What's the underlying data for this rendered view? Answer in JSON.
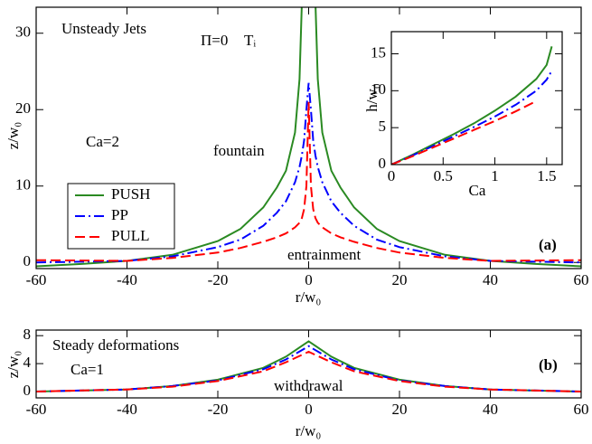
{
  "chart_data": [
    {
      "type": "line",
      "title": "Unsteady Jets",
      "xlabel": "r/w₀",
      "ylabel": "z/w₀",
      "x": [
        -60,
        -50,
        -40,
        -30,
        -20,
        -15,
        -10,
        -7,
        -5,
        -3,
        -2,
        -1.5,
        -1,
        -0.5,
        0,
        0.5,
        1,
        1.5,
        2,
        3,
        5,
        7,
        10,
        15,
        20,
        30,
        40,
        50,
        60
      ],
      "series": [
        {
          "name": "PUSH",
          "color": "#2a8a22",
          "dash": "solid",
          "values": [
            -0.5,
            -0.2,
            0.2,
            1.0,
            2.8,
            4.4,
            7.2,
            9.8,
            12,
            17,
            24,
            34,
            null,
            null,
            null,
            null,
            null,
            34,
            24,
            17,
            12,
            9.8,
            7.2,
            4.4,
            2.8,
            1.0,
            0.2,
            -0.2,
            -0.5
          ]
        },
        {
          "name": "PP",
          "color": "#0000ff",
          "dash": "dashdot",
          "values": [
            0,
            0.1,
            0.2,
            0.8,
            2,
            3,
            4.8,
            6.5,
            8,
            10.5,
            12.5,
            14,
            16,
            20,
            23.5,
            20,
            16,
            14,
            12.5,
            10.5,
            8,
            6.5,
            4.8,
            3,
            2,
            0.8,
            0.2,
            0.1,
            0
          ]
        },
        {
          "name": "PULL",
          "color": "#ff0000",
          "dash": "dashed",
          "values": [
            0.3,
            0.25,
            0.2,
            0.6,
            1.3,
            1.9,
            2.7,
            3.3,
            3.8,
            4.6,
            5.2,
            5.8,
            7,
            10,
            21,
            10,
            7,
            5.8,
            5.2,
            4.6,
            3.8,
            3.3,
            2.7,
            1.9,
            1.3,
            0.6,
            0.2,
            0.25,
            0.3
          ]
        }
      ],
      "xlim": [
        -60,
        60
      ],
      "ylim": [
        -0.8,
        33.4
      ],
      "xticks": [
        -60,
        -40,
        -20,
        0,
        20,
        40,
        60
      ],
      "yticks": [
        0,
        10,
        20,
        30
      ],
      "legend": "left",
      "annotations": [
        {
          "text": "Π=0",
          "color": "#000000"
        },
        {
          "text": "Tᵢ",
          "color": "#000000"
        },
        {
          "text": "Ca=2",
          "color": "#000000"
        },
        {
          "text": "fountain",
          "color": "#2a8a22"
        },
        {
          "text": "entrainment",
          "color": "#ff0000"
        },
        {
          "text": "(a)",
          "color": "#000000",
          "weight": "bold"
        }
      ]
    },
    {
      "type": "line",
      "xlabel": "Ca",
      "ylabel": "h/w₀",
      "x": [
        0,
        0.2,
        0.4,
        0.6,
        0.8,
        1,
        1.2,
        1.4,
        1.5,
        1.55
      ],
      "series": [
        {
          "name": "PUSH",
          "color": "#2a8a22",
          "dash": "solid",
          "values": [
            0,
            1.3,
            2.7,
            4.1,
            5.6,
            7.3,
            9.2,
            11.6,
            13.5,
            16
          ]
        },
        {
          "name": "PP",
          "color": "#0000ff",
          "dash": "dashdot",
          "values": [
            0,
            1.2,
            2.5,
            3.8,
            5.1,
            6.5,
            8.1,
            10,
            11.5,
            12.7
          ]
        },
        {
          "name": "PULL",
          "color": "#ff0000",
          "dash": "dashed",
          "values": [
            0,
            1.1,
            2.3,
            3.5,
            4.7,
            5.9,
            7.2,
            8.6,
            null,
            null
          ]
        }
      ],
      "xlim": [
        0,
        1.65
      ],
      "ylim": [
        0,
        18
      ],
      "xticks": [
        0,
        0.5,
        1,
        1.5
      ],
      "yticks": [
        0,
        5,
        10,
        15
      ]
    },
    {
      "type": "line",
      "title": "Steady deformations",
      "xlabel": "r/w₀",
      "ylabel": "z/w₀",
      "x": [
        -60,
        -40,
        -30,
        -20,
        -10,
        -5,
        0,
        5,
        10,
        20,
        30,
        40,
        60
      ],
      "series": [
        {
          "name": "PUSH",
          "color": "#2a8a22",
          "dash": "solid",
          "values": [
            0,
            0.3,
            0.8,
            1.7,
            3.4,
            5,
            7.2,
            5,
            3.4,
            1.7,
            0.8,
            0.3,
            0
          ]
        },
        {
          "name": "PP",
          "color": "#0000ff",
          "dash": "dashdot",
          "values": [
            0,
            0.3,
            0.8,
            1.6,
            3.2,
            4.6,
            6.5,
            4.6,
            3.2,
            1.6,
            0.8,
            0.3,
            0
          ]
        },
        {
          "name": "PULL",
          "color": "#ff0000",
          "dash": "dashed",
          "values": [
            0,
            0.3,
            0.7,
            1.5,
            2.9,
            4.2,
            5.7,
            4.2,
            2.9,
            1.5,
            0.7,
            0.3,
            0
          ]
        }
      ],
      "xlim": [
        -60,
        60
      ],
      "ylim": [
        -0.9,
        8.8
      ],
      "xticks": [
        -60,
        -40,
        -20,
        0,
        20,
        40,
        60
      ],
      "yticks": [
        0,
        4,
        8
      ],
      "annotations": [
        {
          "text": "Ca=1",
          "color": "#000000"
        },
        {
          "text": "withdrawal",
          "color": "#ff0000"
        },
        {
          "text": "(b)",
          "color": "#000000",
          "weight": "bold"
        }
      ]
    }
  ]
}
